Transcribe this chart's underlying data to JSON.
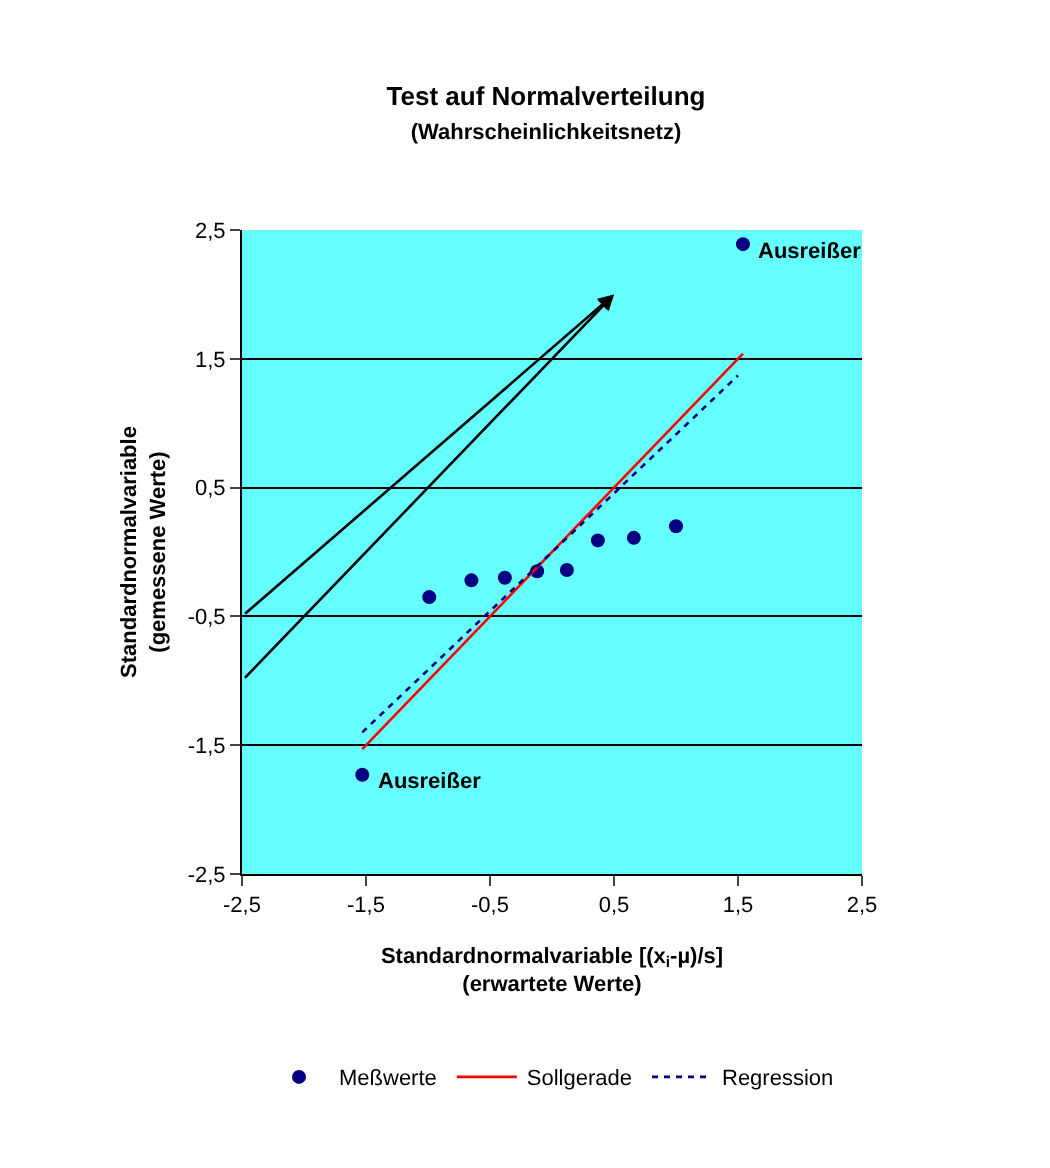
{
  "chart_data": {
    "type": "scatter",
    "title": "Test auf Normalverteilung",
    "subtitle": "(Wahrscheinlichkeitsnetz)",
    "xlabel": "Standardnormalvariable [(x$_{i}$-µ)/s]\n(erwartete Werte)",
    "ylabel": "Standardnormalvariable\n(gemessene Werte)",
    "series": [
      {
        "name": "Meßwerte",
        "marker": "circle",
        "color": "#000080",
        "x": [
          -1.53,
          -0.99,
          -0.65,
          -0.38,
          -0.12,
          0.12,
          0.37,
          0.66,
          1.0,
          1.54
        ],
        "values": [
          -1.73,
          -0.35,
          -0.22,
          -0.2,
          -0.15,
          -0.14,
          0.09,
          0.11,
          0.2,
          2.39
        ]
      },
      {
        "name": "Sollgerade",
        "type": "line",
        "line_style": "solid",
        "color": "#ff0000",
        "x": [
          -1.53,
          1.54
        ],
        "values": [
          -1.53,
          1.54
        ]
      },
      {
        "name": "Regression",
        "type": "line",
        "line_style": "dotted",
        "color": "#000080",
        "x": [
          -1.53,
          1.5
        ],
        "values": [
          -1.4,
          1.37
        ]
      }
    ],
    "annotations": [
      {
        "text": "Ausreißer",
        "x": 1.54,
        "y": 2.39
      },
      {
        "text": "Ausreißer",
        "x": -1.53,
        "y": -1.73
      }
    ],
    "xlim": [
      -2.5,
      2.5
    ],
    "ylim": [
      -2.5,
      2.5
    ],
    "xticks": [
      {
        "value": -2.5,
        "label": "-2,5"
      },
      {
        "value": -1.5,
        "label": "-1,5"
      },
      {
        "value": -0.5,
        "label": "-0,5"
      },
      {
        "value": 0.5,
        "label": "0,5"
      },
      {
        "value": 1.5,
        "label": "1,5"
      },
      {
        "value": 2.5,
        "label": "2,5"
      }
    ],
    "yticks": [
      {
        "value": -2.5,
        "label": "-2,5"
      },
      {
        "value": -1.5,
        "label": "-1,5"
      },
      {
        "value": -0.5,
        "label": "-0,5"
      },
      {
        "value": 0.5,
        "label": "0,5"
      },
      {
        "value": 1.5,
        "label": "1,5"
      },
      {
        "value": 2.5,
        "label": "2,5"
      }
    ],
    "grid": "y",
    "legend": "bottom"
  }
}
